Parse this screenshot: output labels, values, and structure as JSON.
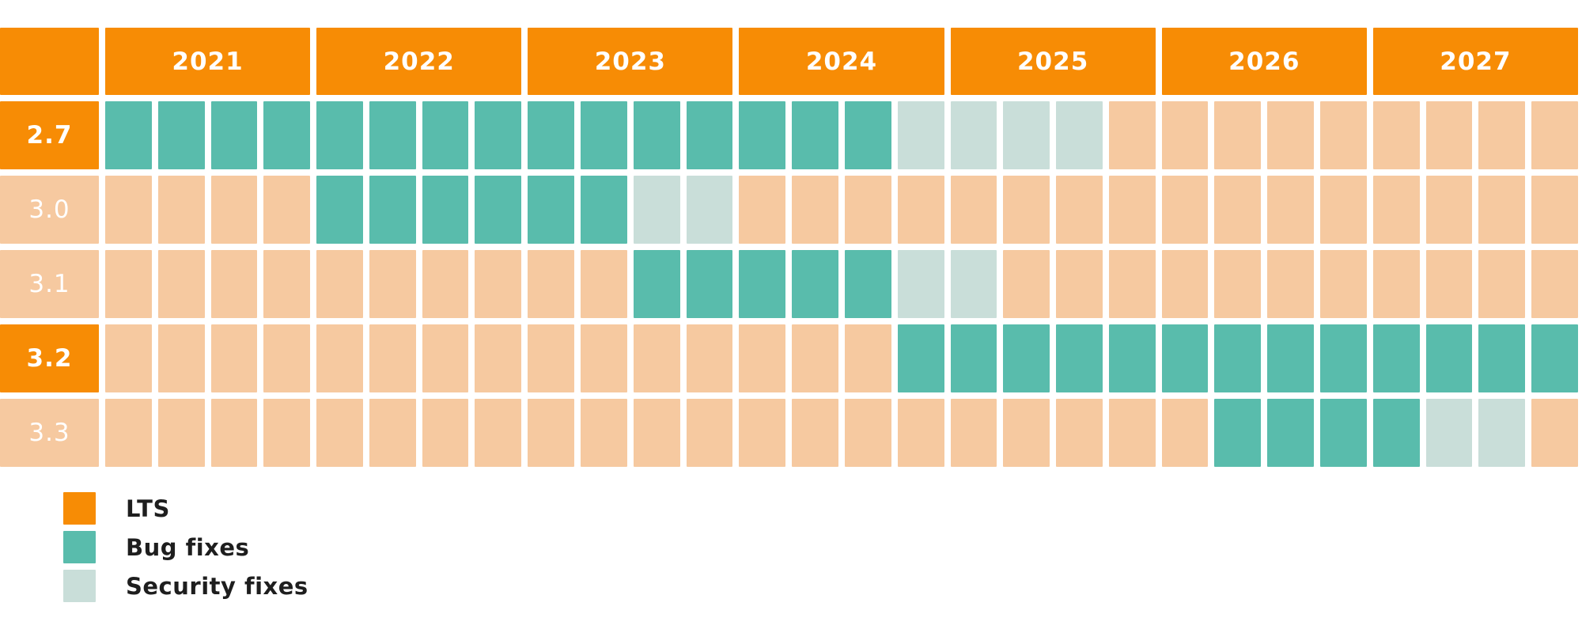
{
  "colors": {
    "lts_orange": "#F78C05",
    "bug_teal": "#59BCAC",
    "security_teal": "#C9DED9",
    "none_peach": "#F6C9A0",
    "legend_text": "#1E1E1E",
    "background": "#FFFFFF",
    "grid_gap_white": "#FFFFFF"
  },
  "header": {
    "years": [
      "2021",
      "2022",
      "2023",
      "2024",
      "2025",
      "2026",
      "2027"
    ],
    "quarters_per_year": 4
  },
  "rows": [
    {
      "label": "2.7",
      "style": "lts",
      "cells": [
        "bug",
        "bug",
        "bug",
        "bug",
        "bug",
        "bug",
        "bug",
        "bug",
        "bug",
        "bug",
        "bug",
        "bug",
        "bug",
        "bug",
        "bug",
        "sec",
        "sec",
        "sec",
        "sec",
        "off",
        "off",
        "off",
        "off",
        "off",
        "off",
        "off",
        "off",
        "off"
      ]
    },
    {
      "label": "3.0",
      "style": "normal",
      "cells": [
        "off",
        "off",
        "off",
        "off",
        "bug",
        "bug",
        "bug",
        "bug",
        "bug",
        "bug",
        "sec",
        "sec",
        "off",
        "off",
        "off",
        "off",
        "off",
        "off",
        "off",
        "off",
        "off",
        "off",
        "off",
        "off",
        "off",
        "off",
        "off",
        "off"
      ]
    },
    {
      "label": "3.1",
      "style": "normal",
      "cells": [
        "off",
        "off",
        "off",
        "off",
        "off",
        "off",
        "off",
        "off",
        "off",
        "off",
        "bug",
        "bug",
        "bug",
        "bug",
        "bug",
        "sec",
        "sec",
        "off",
        "off",
        "off",
        "off",
        "off",
        "off",
        "off",
        "off",
        "off",
        "off",
        "off"
      ]
    },
    {
      "label": "3.2",
      "style": "lts",
      "cells": [
        "off",
        "off",
        "off",
        "off",
        "off",
        "off",
        "off",
        "off",
        "off",
        "off",
        "off",
        "off",
        "off",
        "off",
        "off",
        "bug",
        "bug",
        "bug",
        "bug",
        "bug",
        "bug",
        "bug",
        "bug",
        "bug",
        "bug",
        "bug",
        "bug",
        "bug"
      ]
    },
    {
      "label": "3.3",
      "style": "normal",
      "cells": [
        "off",
        "off",
        "off",
        "off",
        "off",
        "off",
        "off",
        "off",
        "off",
        "off",
        "off",
        "off",
        "off",
        "off",
        "off",
        "off",
        "off",
        "off",
        "off",
        "off",
        "off",
        "bug",
        "bug",
        "bug",
        "bug",
        "sec",
        "sec",
        "off"
      ]
    }
  ],
  "legend": {
    "items": [
      {
        "label": "LTS",
        "swatch": "lts"
      },
      {
        "label": "Bug fixes",
        "swatch": "bug"
      },
      {
        "label": "Security fixes",
        "swatch": "sec"
      }
    ]
  },
  "chart_data": {
    "type": "heatmap",
    "title": "",
    "x_years": [
      "2021",
      "2022",
      "2023",
      "2024",
      "2025",
      "2026",
      "2027"
    ],
    "x_resolution": "quarter",
    "row_labels": [
      "2.7",
      "3.0",
      "3.1",
      "3.2",
      "3.3"
    ],
    "lts_versions": [
      "2.7",
      "3.2"
    ],
    "cell_states": [
      "bug",
      "sec",
      "off"
    ],
    "legend_entries": [
      "LTS",
      "Bug fixes",
      "Security fixes"
    ],
    "legend_position": "bottom-left",
    "support_periods": [
      {
        "version": "2.7",
        "lts": true,
        "bug_fixes": {
          "from": "2021 Q1",
          "to": "2024 Q3"
        },
        "security_fixes": {
          "from": "2024 Q4",
          "to": "2025 Q3"
        }
      },
      {
        "version": "3.0",
        "lts": false,
        "bug_fixes": {
          "from": "2022 Q1",
          "to": "2023 Q2"
        },
        "security_fixes": {
          "from": "2023 Q3",
          "to": "2023 Q4"
        }
      },
      {
        "version": "3.1",
        "lts": false,
        "bug_fixes": {
          "from": "2023 Q3",
          "to": "2024 Q3"
        },
        "security_fixes": {
          "from": "2024 Q4",
          "to": "2025 Q1"
        }
      },
      {
        "version": "3.2",
        "lts": true,
        "bug_fixes": {
          "from": "2024 Q4",
          "to": "2027 Q4"
        },
        "security_fixes": null
      },
      {
        "version": "3.3",
        "lts": false,
        "bug_fixes": {
          "from": "2026 Q2",
          "to": "2027 Q1"
        },
        "security_fixes": {
          "from": "2027 Q2",
          "to": "2027 Q3"
        }
      }
    ]
  }
}
